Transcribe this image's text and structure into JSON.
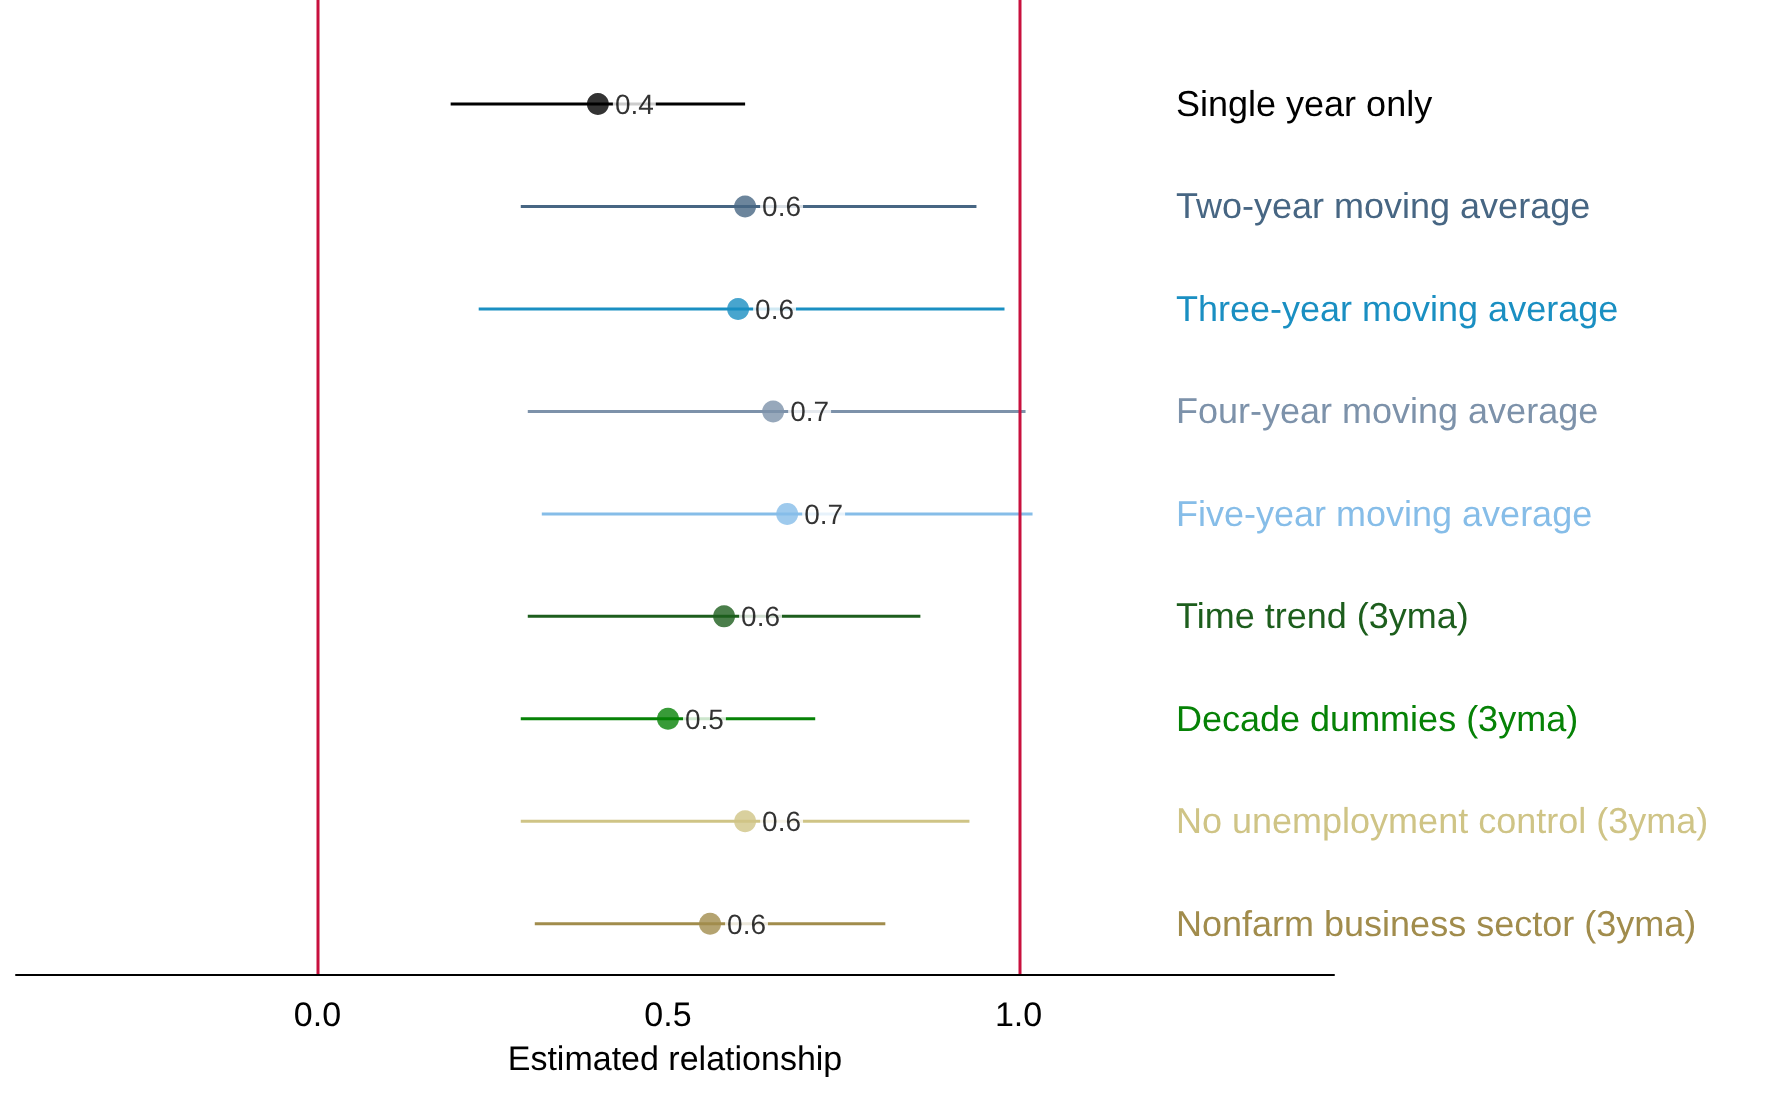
{
  "chart_data": {
    "type": "scatter",
    "orientation": "horizontal",
    "xlabel": "Estimated relationship",
    "categories": [
      "Single year only",
      "Two-year moving average",
      "Three-year moving average",
      "Four-year moving average",
      "Five-year moving average",
      "Time trend (3yma)",
      "Decade dummies (3yma)",
      "No unemployment control (3yma)",
      "Nonfarm business sector (3yma)"
    ],
    "values": [
      0.4,
      0.61,
      0.6,
      0.65,
      0.67,
      0.58,
      0.5,
      0.61,
      0.56
    ],
    "value_labels": [
      "0.4",
      "0.6",
      "0.6",
      "0.7",
      "0.7",
      "0.6",
      "0.5",
      "0.6",
      "0.6"
    ],
    "errors": [
      [
        0.19,
        0.61
      ],
      [
        0.29,
        0.94
      ],
      [
        0.23,
        0.98
      ],
      [
        0.3,
        1.01
      ],
      [
        0.32,
        1.02
      ],
      [
        0.3,
        0.86
      ],
      [
        0.29,
        0.71
      ],
      [
        0.29,
        0.93
      ],
      [
        0.31,
        0.81
      ]
    ],
    "colors": [
      "#000000",
      "#476683",
      "#1a8fc2",
      "#7d92aa",
      "#86bde8",
      "#1d5e1d",
      "#068206",
      "#cfc486",
      "#a18c4c"
    ],
    "xlim": [
      -0.43,
      1.45
    ],
    "xticks": [
      {
        "value": 0,
        "label": "0.0"
      },
      0.5,
      {
        "value": 1,
        "label": "1.0"
      }
    ],
    "ref_lines": [
      {
        "axis": "x",
        "value": 0,
        "color": "#c8103e"
      },
      {
        "axis": "x",
        "value": 1,
        "color": "#c8103e"
      }
    ],
    "grid": false,
    "marker": "circle"
  }
}
